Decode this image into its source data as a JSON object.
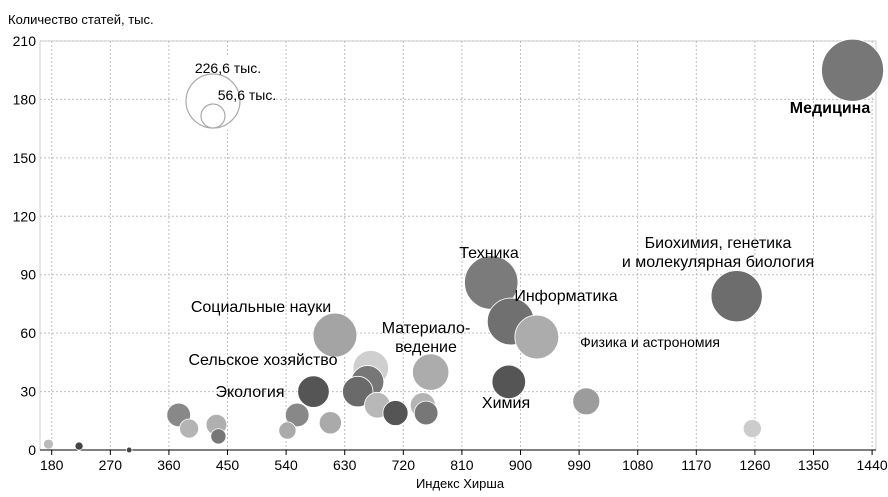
{
  "chart_data": {
    "type": "scatter",
    "subtype": "bubble",
    "ylabel": "Количество статей, тыс.",
    "xlabel": "Индекс Хирша",
    "xlim": [
      162,
      1446
    ],
    "ylim": [
      0,
      210
    ],
    "xticks": [
      "180",
      "270",
      "360",
      "450",
      "540",
      "630",
      "720",
      "810",
      "900",
      "990",
      "1080",
      "1170",
      "1260",
      "1350",
      "1440"
    ],
    "yticks": [
      "0",
      "30",
      "60",
      "90",
      "120",
      "150",
      "180",
      "210"
    ],
    "grid": true,
    "size_legend": {
      "large_label": "226,6 тыс.",
      "small_label": "56,6 тыс.",
      "large_value": 226.6,
      "small_value": 56.6
    },
    "points": [
      {
        "label": "Медицина",
        "x": 1410,
        "y": 195,
        "size": 226.6,
        "color": "#777777",
        "label_bold": true
      },
      {
        "label": "Биохимия, генетика\nи молекулярная биология",
        "x": 1232,
        "y": 79,
        "size": 79,
        "color": "#6d6d6d"
      },
      {
        "label": "Техника",
        "x": 855,
        "y": 86,
        "size": 86,
        "color": "#7b7b7b"
      },
      {
        "label": "Информатика",
        "x": 885,
        "y": 66,
        "size": 66,
        "color": "#707070"
      },
      {
        "label": "Физика и астрономия",
        "x": 925,
        "y": 58,
        "size": 58,
        "color": "#acacac"
      },
      {
        "label": "Социальные науки",
        "x": 615,
        "y": 59,
        "size": 58,
        "color": "#a4a4a4"
      },
      {
        "label": "Материало-\nведение",
        "x": 762,
        "y": 40,
        "size": 40,
        "color": "#acacac"
      },
      {
        "label": "Сельское хозяйство",
        "x": 670,
        "y": 42,
        "size": 38,
        "color": "#cfcfcf"
      },
      {
        "label": "Химия",
        "x": 882,
        "y": 35,
        "size": 34,
        "color": "#555555"
      },
      {
        "label": "Экология",
        "x": 582,
        "y": 30,
        "size": 30,
        "color": "#555555"
      },
      {
        "label": "",
        "x": 665,
        "y": 35,
        "size": 32,
        "color": "#777777"
      },
      {
        "label": "",
        "x": 650,
        "y": 30,
        "size": 28,
        "color": "#6a6a6a"
      },
      {
        "label": "",
        "x": 1001,
        "y": 25,
        "size": 22,
        "color": "#9c9c9c"
      },
      {
        "label": "",
        "x": 680,
        "y": 23,
        "size": 20,
        "color": "#b8b8b8"
      },
      {
        "label": "",
        "x": 708,
        "y": 19,
        "size": 19,
        "color": "#555555"
      },
      {
        "label": "",
        "x": 750,
        "y": 23,
        "size": 19,
        "color": "#b4b4b4"
      },
      {
        "label": "",
        "x": 755,
        "y": 19,
        "size": 17,
        "color": "#777777"
      },
      {
        "label": "",
        "x": 375,
        "y": 18,
        "size": 17,
        "color": "#888888"
      },
      {
        "label": "",
        "x": 557,
        "y": 18,
        "size": 17,
        "color": "#888888"
      },
      {
        "label": "",
        "x": 608,
        "y": 14,
        "size": 15,
        "color": "#aaaaaa"
      },
      {
        "label": "",
        "x": 433,
        "y": 13,
        "size": 13,
        "color": "#b0b0b0"
      },
      {
        "label": "",
        "x": 391,
        "y": 11,
        "size": 11,
        "color": "#b4b4b4"
      },
      {
        "label": "",
        "x": 542,
        "y": 10,
        "size": 9,
        "color": "#aaaaaa"
      },
      {
        "label": "",
        "x": 436,
        "y": 7,
        "size": 7,
        "color": "#777777"
      },
      {
        "label": "",
        "x": 1256,
        "y": 11,
        "size": 10,
        "color": "#cccccc"
      },
      {
        "label": "",
        "x": 175,
        "y": 3,
        "size": 3,
        "color": "#bbbbbb"
      },
      {
        "label": "",
        "x": 222,
        "y": 2,
        "size": 2,
        "color": "#444444"
      },
      {
        "label": "",
        "x": 299,
        "y": 0,
        "size": 1,
        "color": "#444444"
      }
    ]
  }
}
